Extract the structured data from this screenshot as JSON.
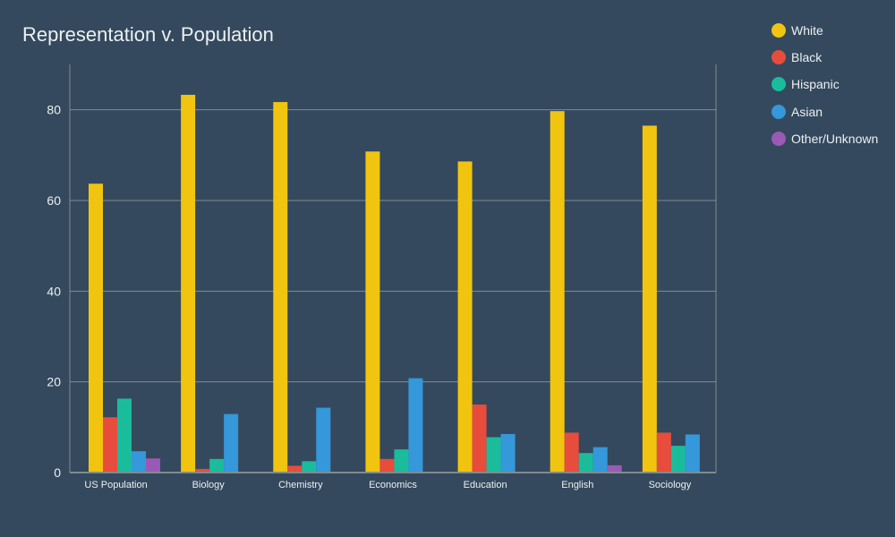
{
  "chart_data": {
    "type": "bar",
    "title": "Representation v. Population",
    "xlabel": "",
    "ylabel": "",
    "ylim": [
      0,
      90
    ],
    "yticks": [
      0,
      20,
      40,
      60,
      80
    ],
    "grid": true,
    "legend_position": "top-right",
    "categories": [
      "US Population",
      "Biology",
      "Chemistry",
      "Economics",
      "Education",
      "English",
      "Sociology"
    ],
    "series": [
      {
        "name": "White",
        "color": "#f1c40f",
        "values": [
          63.7,
          83.3,
          81.7,
          70.8,
          68.6,
          79.7,
          76.5
        ]
      },
      {
        "name": "Black",
        "color": "#e74c3c",
        "values": [
          12.2,
          0.8,
          1.5,
          3.0,
          15.0,
          8.8,
          8.8
        ]
      },
      {
        "name": "Hispanic",
        "color": "#1abc9c",
        "values": [
          16.3,
          3.0,
          2.5,
          5.1,
          7.8,
          4.3,
          5.9
        ]
      },
      {
        "name": "Asian",
        "color": "#3498db",
        "values": [
          4.7,
          12.9,
          14.3,
          20.8,
          8.5,
          5.6,
          8.4
        ]
      },
      {
        "name": "Other/Unknown",
        "color": "#9b59b6",
        "values": [
          3.1,
          0.2,
          0.0,
          0.2,
          0.0,
          1.6,
          0.2
        ]
      }
    ]
  },
  "colors": {
    "background": "#34495e",
    "grid": "#7f8c8d",
    "text": "#ecf0f1"
  }
}
